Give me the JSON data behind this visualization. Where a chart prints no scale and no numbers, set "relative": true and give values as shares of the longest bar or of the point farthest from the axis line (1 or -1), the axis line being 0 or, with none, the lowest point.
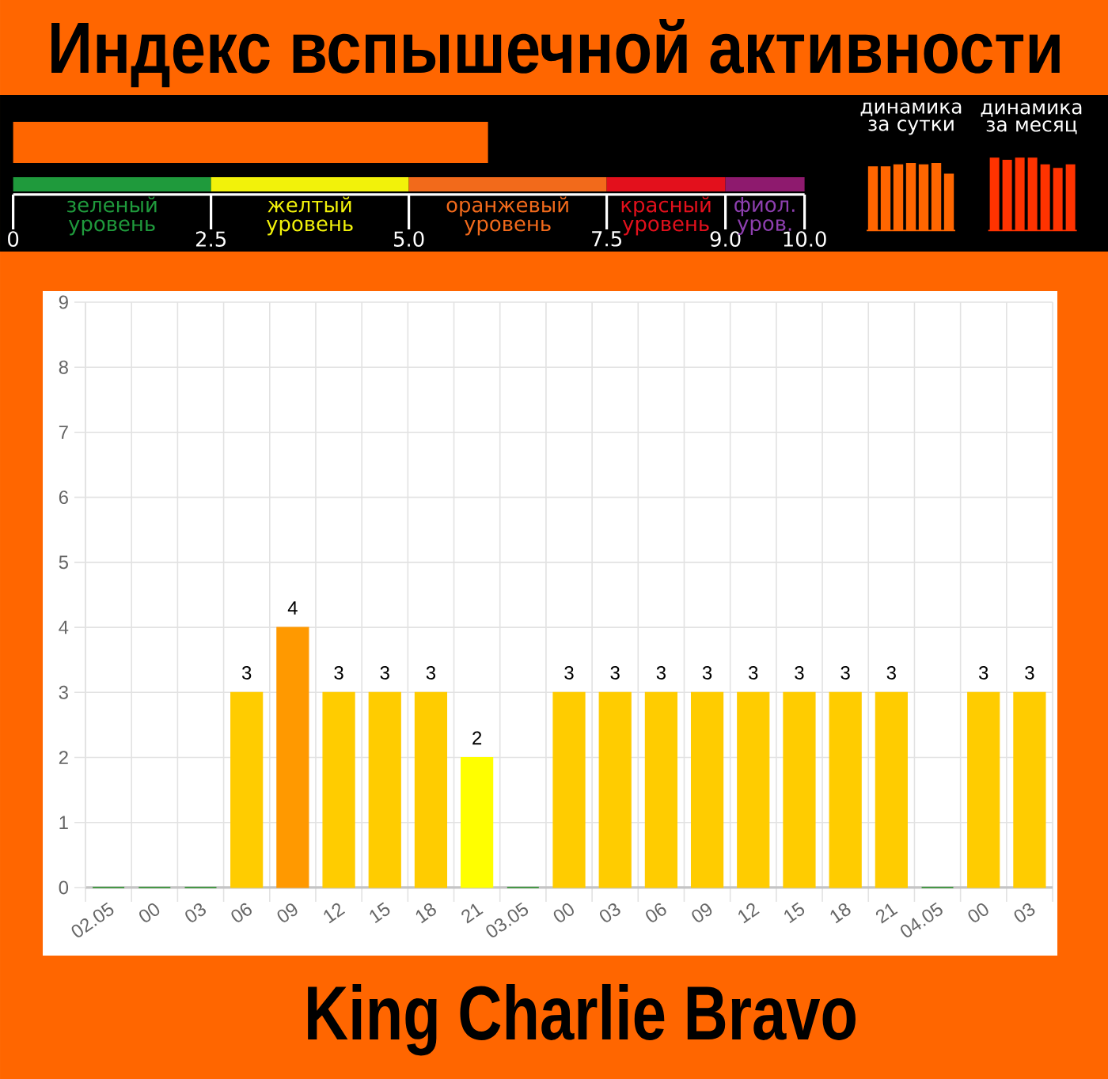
{
  "chart_data": [
    {
      "type": "bar",
      "orientation": "horizontal",
      "title": "Индекс вспышечной активности",
      "categories": [
        null
      ],
      "values": [
        6.0
      ],
      "color": "#ff6600",
      "xlim": [
        0,
        10
      ],
      "xticks": [
        0,
        2.5,
        {
          "value": 5,
          "label": "5.0"
        },
        7.5,
        {
          "value": 9,
          "label": "9.0"
        },
        {
          "value": 10,
          "label": "10.0"
        }
      ],
      "annotations": [
        "зеленый уровень",
        "желтый уровень",
        "оранжевый уровень",
        "красный уровень",
        "фиол. уров."
      ]
    },
    {
      "type": "bar",
      "title": "динамика за сутки",
      "categories": [
        null,
        null,
        null,
        null,
        null,
        null,
        null
      ],
      "values": [
        0.95,
        0.95,
        0.98,
        1,
        0.98,
        1,
        0.84
      ],
      "color": "#ff6600",
      "relative": true
    },
    {
      "type": "bar",
      "title": "динамика за месяц",
      "categories": [
        null,
        null,
        null,
        null,
        null,
        null,
        null
      ],
      "values": [
        1,
        0.97,
        1,
        1,
        0.91,
        0.86,
        0.91
      ],
      "color": "#ff3300",
      "relative": true
    },
    {
      "type": "bar",
      "title": "King Charlie Bravo",
      "categories": [
        "02.05",
        "00",
        "03",
        "06",
        "09",
        "12",
        "15",
        "18",
        "21",
        "03.05",
        "00",
        "03",
        "06",
        "09",
        "12",
        "15",
        "18",
        "21",
        "04.05",
        "00",
        "03"
      ],
      "values": [
        0,
        0,
        0,
        3,
        4,
        3,
        3,
        3,
        2,
        0,
        3,
        3,
        3,
        3,
        3,
        3,
        3,
        3,
        0,
        3,
        3
      ],
      "value_labels": [
        null,
        null,
        null,
        "3",
        "4",
        "3",
        "3",
        "3",
        "2",
        null,
        "3",
        "3",
        "3",
        "3",
        "3",
        "3",
        "3",
        "3",
        null,
        "3",
        "3"
      ],
      "colors": [
        "#008000",
        "#008000",
        "#008000",
        "#ffcc00",
        "#ff9900",
        "#ffcc00",
        "#ffcc00",
        "#ffcc00",
        "#ffff00",
        "#008000",
        "#ffcc00",
        "#ffcc00",
        "#ffcc00",
        "#ffcc00",
        "#ffcc00",
        "#ffcc00",
        "#ffcc00",
        "#ffcc00",
        "#008000",
        "#ffcc00",
        "#ffcc00"
      ],
      "ylim": [
        0,
        9
      ],
      "yticks": [
        0,
        1,
        2,
        3,
        4,
        5,
        6,
        7,
        8,
        9
      ],
      "grid": true
    }
  ]
}
